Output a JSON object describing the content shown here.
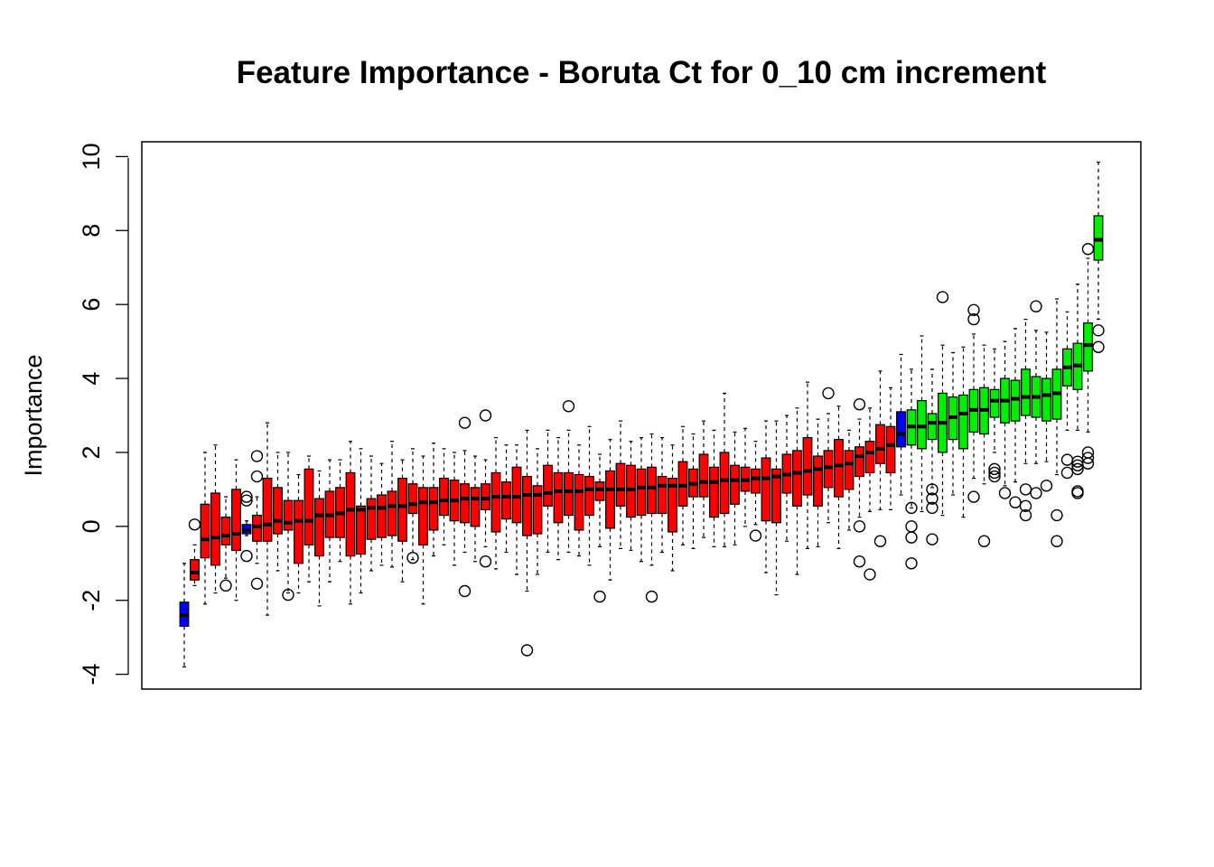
{
  "chart_data": {
    "type": "boxplot",
    "title": "Feature Importance - Boruta Ct for 0_10 cm increment",
    "xlabel": "",
    "ylabel": "Importance",
    "ylim": [
      -4.4,
      10.4
    ],
    "yticks": [
      -4,
      -2,
      0,
      2,
      4,
      6,
      8,
      10
    ],
    "grid": false,
    "legend": "none",
    "colors": {
      "rejected": "#ff0000",
      "shadow": "#0000ff",
      "confirmed": "#00ee00",
      "median": "#000000",
      "outline": "#000000"
    },
    "boxes": [
      {
        "category": "shadow",
        "q1": -2.7,
        "median": -2.4,
        "q3": -2.05,
        "lo": -3.8,
        "hi": -1.0,
        "out": []
      },
      {
        "category": "rejected",
        "q1": -1.45,
        "median": -1.25,
        "q3": -0.9,
        "lo": -1.6,
        "hi": -0.5,
        "out": [
          0.05
        ]
      },
      {
        "category": "rejected",
        "q1": -0.85,
        "median": -0.35,
        "q3": 0.6,
        "lo": -2.1,
        "hi": 2.0,
        "out": []
      },
      {
        "category": "rejected",
        "q1": -1.05,
        "median": -0.3,
        "q3": 0.9,
        "lo": -1.8,
        "hi": 2.2,
        "out": []
      },
      {
        "category": "rejected",
        "q1": -0.5,
        "median": -0.25,
        "q3": 0.25,
        "lo": -1.4,
        "hi": 0.8,
        "out": [
          -1.6
        ]
      },
      {
        "category": "rejected",
        "q1": -0.65,
        "median": -0.2,
        "q3": 1.0,
        "lo": -2.0,
        "hi": 1.8,
        "out": []
      },
      {
        "category": "shadow",
        "q1": -0.2,
        "median": -0.1,
        "q3": 0.05,
        "lo": -0.25,
        "hi": 0.15,
        "out": [
          0.7,
          0.8,
          -0.8
        ]
      },
      {
        "category": "rejected",
        "q1": -0.4,
        "median": 0.0,
        "q3": 0.3,
        "lo": -1.0,
        "hi": 0.8,
        "out": [
          1.9,
          1.35,
          -1.55
        ]
      },
      {
        "category": "rejected",
        "q1": -0.4,
        "median": 0.05,
        "q3": 1.3,
        "lo": -2.4,
        "hi": 2.8,
        "out": []
      },
      {
        "category": "rejected",
        "q1": -0.2,
        "median": 0.15,
        "q3": 1.05,
        "lo": -1.2,
        "hi": 2.0,
        "out": []
      },
      {
        "category": "rejected",
        "q1": -0.1,
        "median": 0.1,
        "q3": 0.7,
        "lo": -1.8,
        "hi": 2.0,
        "out": [
          -1.85
        ]
      },
      {
        "category": "rejected",
        "q1": -1.0,
        "median": 0.15,
        "q3": 0.7,
        "lo": -1.8,
        "hi": 1.4,
        "out": []
      },
      {
        "category": "rejected",
        "q1": -0.5,
        "median": 0.15,
        "q3": 1.55,
        "lo": -1.5,
        "hi": 1.9,
        "out": []
      },
      {
        "category": "rejected",
        "q1": -0.8,
        "median": 0.3,
        "q3": 0.75,
        "lo": -2.15,
        "hi": 1.5,
        "out": []
      },
      {
        "category": "rejected",
        "q1": -0.3,
        "median": 0.3,
        "q3": 0.95,
        "lo": -1.5,
        "hi": 1.8,
        "out": []
      },
      {
        "category": "rejected",
        "q1": -0.3,
        "median": 0.35,
        "q3": 1.05,
        "lo": -0.95,
        "hi": 1.8,
        "out": []
      },
      {
        "category": "rejected",
        "q1": -0.8,
        "median": 0.45,
        "q3": 1.45,
        "lo": -2.1,
        "hi": 2.3,
        "out": []
      },
      {
        "category": "rejected",
        "q1": -0.75,
        "median": 0.45,
        "q3": 0.55,
        "lo": -1.8,
        "hi": 2.1,
        "out": []
      },
      {
        "category": "rejected",
        "q1": -0.35,
        "median": 0.5,
        "q3": 0.75,
        "lo": -1.2,
        "hi": 1.9,
        "out": []
      },
      {
        "category": "rejected",
        "q1": -0.3,
        "median": 0.5,
        "q3": 0.85,
        "lo": -1.05,
        "hi": 1.7,
        "out": []
      },
      {
        "category": "rejected",
        "q1": -0.25,
        "median": 0.55,
        "q3": 0.95,
        "lo": -1.1,
        "hi": 2.3,
        "out": []
      },
      {
        "category": "rejected",
        "q1": -0.4,
        "median": 0.55,
        "q3": 1.3,
        "lo": -1.5,
        "hi": 1.8,
        "out": []
      },
      {
        "category": "rejected",
        "q1": 0.35,
        "median": 0.6,
        "q3": 1.15,
        "lo": -0.9,
        "hi": 2.1,
        "out": [
          -0.85
        ]
      },
      {
        "category": "rejected",
        "q1": -0.5,
        "median": 0.65,
        "q3": 1.05,
        "lo": -2.1,
        "hi": 1.9,
        "out": []
      },
      {
        "category": "rejected",
        "q1": -0.1,
        "median": 0.65,
        "q3": 1.05,
        "lo": -0.8,
        "hi": 2.25,
        "out": []
      },
      {
        "category": "rejected",
        "q1": 0.3,
        "median": 0.7,
        "q3": 1.3,
        "lo": -0.5,
        "hi": 2.1,
        "out": []
      },
      {
        "category": "rejected",
        "q1": 0.15,
        "median": 0.7,
        "q3": 1.25,
        "lo": -1.05,
        "hi": 2.0,
        "out": []
      },
      {
        "category": "rejected",
        "q1": 0.1,
        "median": 0.75,
        "q3": 1.15,
        "lo": -0.7,
        "hi": 2.05,
        "out": [
          2.8,
          -1.75
        ]
      },
      {
        "category": "rejected",
        "q1": 0.0,
        "median": 0.75,
        "q3": 1.05,
        "lo": -0.95,
        "hi": 1.9,
        "out": []
      },
      {
        "category": "rejected",
        "q1": 0.45,
        "median": 0.75,
        "q3": 1.15,
        "lo": -0.55,
        "hi": 1.8,
        "out": [
          3.0,
          -0.95
        ]
      },
      {
        "category": "rejected",
        "q1": -0.15,
        "median": 0.8,
        "q3": 1.45,
        "lo": -1.15,
        "hi": 2.4,
        "out": []
      },
      {
        "category": "rejected",
        "q1": 0.2,
        "median": 0.8,
        "q3": 1.2,
        "lo": -0.7,
        "hi": 2.2,
        "out": []
      },
      {
        "category": "rejected",
        "q1": 0.1,
        "median": 0.8,
        "q3": 1.6,
        "lo": -1.3,
        "hi": 2.2,
        "out": []
      },
      {
        "category": "rejected",
        "q1": -0.25,
        "median": 0.85,
        "q3": 1.35,
        "lo": -1.75,
        "hi": 2.6,
        "out": [
          -3.35
        ]
      },
      {
        "category": "rejected",
        "q1": -0.2,
        "median": 0.85,
        "q3": 1.1,
        "lo": -1.3,
        "hi": 2.1,
        "out": []
      },
      {
        "category": "rejected",
        "q1": 0.55,
        "median": 0.9,
        "q3": 1.65,
        "lo": -0.7,
        "hi": 2.6,
        "out": []
      },
      {
        "category": "rejected",
        "q1": 0.1,
        "median": 0.95,
        "q3": 1.45,
        "lo": -0.9,
        "hi": 2.4,
        "out": []
      },
      {
        "category": "rejected",
        "q1": 0.3,
        "median": 0.95,
        "q3": 1.45,
        "lo": -0.7,
        "hi": 2.6,
        "out": [
          3.25
        ]
      },
      {
        "category": "rejected",
        "q1": -0.1,
        "median": 0.95,
        "q3": 1.4,
        "lo": -0.8,
        "hi": 2.2,
        "out": []
      },
      {
        "category": "rejected",
        "q1": 0.3,
        "median": 1.0,
        "q3": 1.35,
        "lo": -1.05,
        "hi": 2.7,
        "out": []
      },
      {
        "category": "rejected",
        "q1": 0.7,
        "median": 1.0,
        "q3": 1.2,
        "lo": -0.55,
        "hi": 1.95,
        "out": [
          -1.9
        ]
      },
      {
        "category": "rejected",
        "q1": -0.05,
        "median": 1.0,
        "q3": 1.5,
        "lo": -1.45,
        "hi": 2.35,
        "out": []
      },
      {
        "category": "rejected",
        "q1": 0.55,
        "median": 1.0,
        "q3": 1.7,
        "lo": -0.6,
        "hi": 2.85,
        "out": []
      },
      {
        "category": "rejected",
        "q1": 0.25,
        "median": 1.0,
        "q3": 1.65,
        "lo": -0.65,
        "hi": 2.3,
        "out": []
      },
      {
        "category": "rejected",
        "q1": 0.3,
        "median": 1.05,
        "q3": 1.55,
        "lo": -0.95,
        "hi": 2.4,
        "out": []
      },
      {
        "category": "rejected",
        "q1": 0.35,
        "median": 1.05,
        "q3": 1.6,
        "lo": -1.05,
        "hi": 2.5,
        "out": [
          -1.9
        ]
      },
      {
        "category": "rejected",
        "q1": 0.35,
        "median": 1.1,
        "q3": 1.35,
        "lo": -0.7,
        "hi": 2.4,
        "out": []
      },
      {
        "category": "rejected",
        "q1": -0.15,
        "median": 1.1,
        "q3": 1.3,
        "lo": -1.2,
        "hi": 2.2,
        "out": []
      },
      {
        "category": "rejected",
        "q1": 0.55,
        "median": 1.1,
        "q3": 1.75,
        "lo": -0.5,
        "hi": 2.7,
        "out": []
      },
      {
        "category": "rejected",
        "q1": 0.8,
        "median": 1.15,
        "q3": 1.55,
        "lo": -0.6,
        "hi": 2.5,
        "out": []
      },
      {
        "category": "rejected",
        "q1": 0.8,
        "median": 1.2,
        "q3": 1.95,
        "lo": -0.3,
        "hi": 2.85,
        "out": []
      },
      {
        "category": "rejected",
        "q1": 0.25,
        "median": 1.2,
        "q3": 1.6,
        "lo": -0.55,
        "hi": 2.6,
        "out": []
      },
      {
        "category": "rejected",
        "q1": 0.35,
        "median": 1.25,
        "q3": 2.0,
        "lo": -0.55,
        "hi": 3.6,
        "out": []
      },
      {
        "category": "rejected",
        "q1": 0.6,
        "median": 1.25,
        "q3": 1.65,
        "lo": -0.5,
        "hi": 2.55,
        "out": []
      },
      {
        "category": "rejected",
        "q1": 0.95,
        "median": 1.25,
        "q3": 1.6,
        "lo": 0.0,
        "hi": 2.65,
        "out": []
      },
      {
        "category": "rejected",
        "q1": 0.9,
        "median": 1.3,
        "q3": 1.55,
        "lo": 0.05,
        "hi": 2.3,
        "out": [
          -0.25
        ]
      },
      {
        "category": "rejected",
        "q1": 0.15,
        "median": 1.3,
        "q3": 1.85,
        "lo": -1.25,
        "hi": 2.85,
        "out": []
      },
      {
        "category": "rejected",
        "q1": 0.1,
        "median": 1.35,
        "q3": 1.55,
        "lo": -1.85,
        "hi": 2.85,
        "out": []
      },
      {
        "category": "rejected",
        "q1": 0.9,
        "median": 1.4,
        "q3": 1.95,
        "lo": -0.4,
        "hi": 3.0,
        "out": []
      },
      {
        "category": "rejected",
        "q1": 0.55,
        "median": 1.45,
        "q3": 2.05,
        "lo": -1.3,
        "hi": 3.2,
        "out": []
      },
      {
        "category": "rejected",
        "q1": 0.85,
        "median": 1.5,
        "q3": 2.4,
        "lo": -0.6,
        "hi": 3.9,
        "out": []
      },
      {
        "category": "rejected",
        "q1": 0.55,
        "median": 1.55,
        "q3": 1.9,
        "lo": -0.55,
        "hi": 2.9,
        "out": []
      },
      {
        "category": "rejected",
        "q1": 1.05,
        "median": 1.6,
        "q3": 2.05,
        "lo": 0.1,
        "hi": 3.05,
        "out": [
          3.6
        ]
      },
      {
        "category": "rejected",
        "q1": 0.8,
        "median": 1.65,
        "q3": 2.35,
        "lo": -0.6,
        "hi": 3.25,
        "out": []
      },
      {
        "category": "rejected",
        "q1": 1.0,
        "median": 1.7,
        "q3": 2.05,
        "lo": -0.1,
        "hi": 2.6,
        "out": []
      },
      {
        "category": "rejected",
        "q1": 1.35,
        "median": 1.9,
        "q3": 2.15,
        "lo": 0.25,
        "hi": 2.9,
        "out": [
          3.3,
          0.0,
          -0.95
        ]
      },
      {
        "category": "rejected",
        "q1": 1.45,
        "median": 2.0,
        "q3": 2.3,
        "lo": 0.4,
        "hi": 3.2,
        "out": [
          -1.3
        ]
      },
      {
        "category": "rejected",
        "q1": 1.7,
        "median": 2.1,
        "q3": 2.75,
        "lo": 0.45,
        "hi": 4.2,
        "out": [
          -0.4
        ]
      },
      {
        "category": "rejected",
        "q1": 1.45,
        "median": 2.2,
        "q3": 2.7,
        "lo": 0.45,
        "hi": 3.75,
        "out": []
      },
      {
        "category": "shadow",
        "q1": 2.15,
        "median": 2.5,
        "q3": 3.1,
        "lo": 0.85,
        "hi": 4.65,
        "out": []
      },
      {
        "category": "confirmed",
        "q1": 2.2,
        "median": 2.7,
        "q3": 3.15,
        "lo": 0.5,
        "hi": 4.25,
        "out": [
          0.5,
          0.0,
          -0.3,
          -1.0
        ]
      },
      {
        "category": "confirmed",
        "q1": 2.1,
        "median": 2.7,
        "q3": 3.4,
        "lo": 0.4,
        "hi": 5.15,
        "out": []
      },
      {
        "category": "confirmed",
        "q1": 2.35,
        "median": 2.8,
        "q3": 3.05,
        "lo": 1.05,
        "hi": 4.25,
        "out": [
          1.0,
          0.75,
          0.5,
          -0.35
        ]
      },
      {
        "category": "confirmed",
        "q1": 2.0,
        "median": 2.8,
        "q3": 3.6,
        "lo": 0.3,
        "hi": 4.9,
        "out": [
          6.2
        ]
      },
      {
        "category": "confirmed",
        "q1": 2.35,
        "median": 2.95,
        "q3": 3.5,
        "lo": 0.85,
        "hi": 4.7,
        "out": []
      },
      {
        "category": "confirmed",
        "q1": 2.1,
        "median": 3.05,
        "q3": 3.55,
        "lo": 0.25,
        "hi": 4.85,
        "out": []
      },
      {
        "category": "confirmed",
        "q1": 2.55,
        "median": 3.15,
        "q3": 3.7,
        "lo": 1.3,
        "hi": 5.2,
        "out": [
          5.85,
          5.6,
          0.8
        ]
      },
      {
        "category": "confirmed",
        "q1": 2.5,
        "median": 3.15,
        "q3": 3.75,
        "lo": 1.15,
        "hi": 4.9,
        "out": [
          -0.4
        ]
      },
      {
        "category": "confirmed",
        "q1": 2.95,
        "median": 3.4,
        "q3": 3.7,
        "lo": 2.0,
        "hi": 4.8,
        "out": [
          1.55,
          1.45,
          1.35
        ]
      },
      {
        "category": "confirmed",
        "q1": 2.8,
        "median": 3.4,
        "q3": 4.0,
        "lo": 1.1,
        "hi": 5.0,
        "out": [
          0.9
        ]
      },
      {
        "category": "confirmed",
        "q1": 2.85,
        "median": 3.45,
        "q3": 3.95,
        "lo": 1.2,
        "hi": 5.35,
        "out": [
          0.65
        ]
      },
      {
        "category": "confirmed",
        "q1": 3.0,
        "median": 3.5,
        "q3": 4.25,
        "lo": 1.7,
        "hi": 5.6,
        "out": [
          1.0,
          0.55,
          0.3
        ]
      },
      {
        "category": "confirmed",
        "q1": 2.95,
        "median": 3.5,
        "q3": 4.05,
        "lo": 1.7,
        "hi": 5.3,
        "out": [
          5.95,
          0.9
        ]
      },
      {
        "category": "confirmed",
        "q1": 2.85,
        "median": 3.55,
        "q3": 4.0,
        "lo": 1.75,
        "hi": 5.25,
        "out": [
          1.1
        ]
      },
      {
        "category": "confirmed",
        "q1": 2.9,
        "median": 3.6,
        "q3": 4.25,
        "lo": 1.4,
        "hi": 6.15,
        "out": [
          0.3,
          -0.4
        ]
      },
      {
        "category": "confirmed",
        "q1": 3.8,
        "median": 4.3,
        "q3": 4.8,
        "lo": 2.6,
        "hi": 5.8,
        "out": [
          1.8,
          1.45
        ]
      },
      {
        "category": "confirmed",
        "q1": 3.7,
        "median": 4.35,
        "q3": 4.95,
        "lo": 2.6,
        "hi": 6.55,
        "out": [
          1.75,
          1.65,
          1.55,
          0.95,
          0.9
        ]
      },
      {
        "category": "confirmed",
        "q1": 4.2,
        "median": 4.9,
        "q3": 5.5,
        "lo": 2.55,
        "hi": 7.25,
        "out": [
          7.5,
          2.0,
          1.85,
          1.7
        ]
      },
      {
        "category": "confirmed",
        "q1": 7.2,
        "median": 7.75,
        "q3": 8.4,
        "lo": 5.6,
        "hi": 9.85,
        "out": [
          5.3,
          4.85
        ]
      }
    ]
  }
}
